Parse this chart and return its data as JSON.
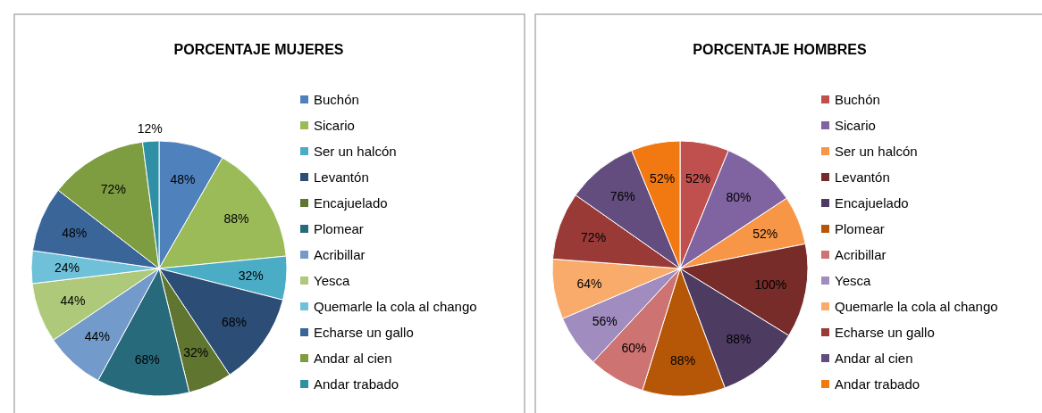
{
  "chart_data": [
    {
      "type": "pie",
      "title": "PORCENTAJE MUJERES",
      "categories": [
        "Buchón",
        "Sicario",
        "Ser un halcón",
        "Levantón",
        "Encajuelado",
        "Plomear",
        "Acribillar",
        "Yesca",
        "Quemarle la cola al chango",
        "Echarse un gallo",
        "Andar al cien",
        "Andar trabado"
      ],
      "values": [
        48,
        88,
        32,
        68,
        32,
        68,
        44,
        44,
        24,
        48,
        72,
        12
      ],
      "value_labels": [
        "48%",
        "88%",
        "32%",
        "68%",
        "32%",
        "68%",
        "44%",
        "44%",
        "24%",
        "48%",
        "72%",
        "12%"
      ],
      "colors": [
        "#4f81bd",
        "#9bbb59",
        "#4bacc6",
        "#2c4d75",
        "#5f7530",
        "#276a7c",
        "#729aca",
        "#afc97a",
        "#6fc0d9",
        "#3a6599",
        "#7e9c40",
        "#2e8fa5"
      ],
      "legend": "right"
    },
    {
      "type": "pie",
      "title": "PORCENTAJE HOMBRES",
      "categories": [
        "Buchón",
        "Sicario",
        "Ser un halcón",
        "Levantón",
        "Encajuelado",
        "Plomear",
        "Acribillar",
        "Yesca",
        "Quemarle la cola al chango",
        "Echarse un gallo",
        "Andar al cien",
        "Andar trabado"
      ],
      "values": [
        52,
        80,
        52,
        100,
        88,
        88,
        60,
        56,
        64,
        72,
        76,
        52
      ],
      "value_labels": [
        "52%",
        "80%",
        "52%",
        "100%",
        "88%",
        "88%",
        "60%",
        "56%",
        "64%",
        "72%",
        "76%",
        "52%"
      ],
      "colors": [
        "#c0504d",
        "#8064a2",
        "#f79646",
        "#772c2a",
        "#4d3b62",
        "#b65708",
        "#cd7371",
        "#a08cbe",
        "#f9ab6b",
        "#9a3a37",
        "#634d7e",
        "#f27811"
      ],
      "legend": "right"
    }
  ]
}
